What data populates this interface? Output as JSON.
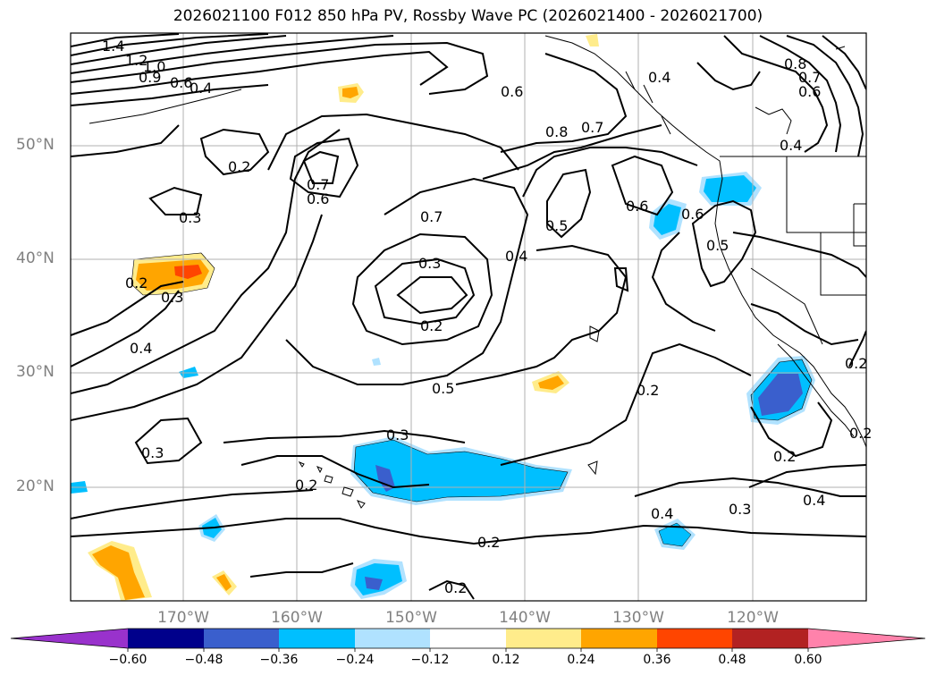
{
  "title": "2026021100 F012 850 hPa PV, Rossby Wave PC (2026021400 - 2026021700)",
  "lat_labels": [
    "50°N",
    "40°N",
    "30°N",
    "20°N"
  ],
  "lon_labels": [
    "170°W",
    "160°W",
    "150°W",
    "140°W",
    "130°W",
    "120°W"
  ],
  "colorbar": {
    "ticks": [
      "−0.60",
      "−0.48",
      "−0.36",
      "−0.24",
      "−0.12",
      "0.12",
      "0.24",
      "0.36",
      "0.48",
      "0.60"
    ],
    "colors": [
      "#9932cc",
      "#00008b",
      "#3a5fcd",
      "#00bfff",
      "#b0e2ff",
      "#ffffff",
      "#ffec8b",
      "#ffa500",
      "#ff4500",
      "#b22222",
      "#ff82ab"
    ]
  },
  "contour_labels": [
    "1.4",
    "1.2",
    "1.0",
    "0.9",
    "0.6",
    "0.4",
    "0.6",
    "0.7",
    "0.8",
    "0.4",
    "0.8",
    "0.7",
    "0.6",
    "0.2",
    "0.7",
    "0.6",
    "0.3",
    "0.7",
    "0.5",
    "0.6",
    "0.6",
    "0.4",
    "0.5",
    "0.2",
    "0.3",
    "0.4",
    "0.3",
    "0.2",
    "0.4",
    "0.2",
    "0.5",
    "0.2",
    "0.3",
    "0.3",
    "0.2",
    "0.2",
    "0.3",
    "0.4",
    "0.2",
    "0.2",
    "0.4",
    "0.2"
  ]
}
